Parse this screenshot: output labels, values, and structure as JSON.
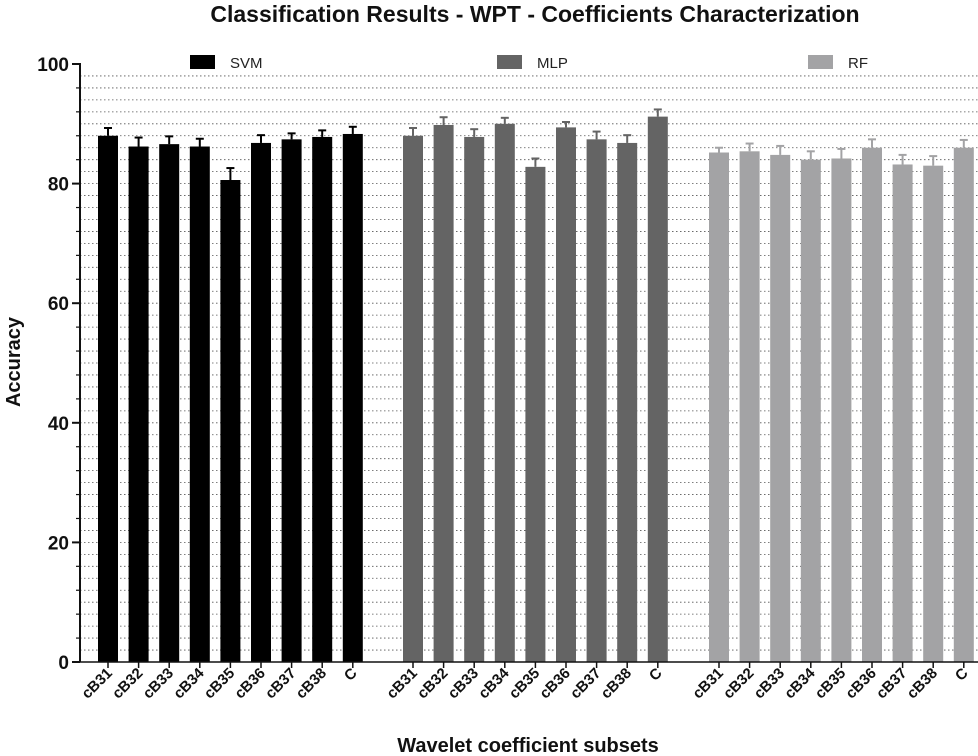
{
  "chart_data": {
    "type": "bar",
    "title": "Classification Results  - WPT - Coefficients Characterization",
    "xlabel": "Wavelet coefficient subsets",
    "ylabel": "Accuracy",
    "ylim": [
      0,
      100
    ],
    "yticks": [
      0,
      20,
      40,
      60,
      80,
      100
    ],
    "grid": "dotted horizontal gridlines",
    "legend_placement": "top",
    "categories": [
      "cB31",
      "cB32",
      "cB33",
      "cB34",
      "cB35",
      "cB36",
      "cB37",
      "cB38",
      "C"
    ],
    "series": [
      {
        "name": "SVM",
        "color": "#000000",
        "values": [
          88.0,
          86.2,
          86.6,
          86.2,
          80.6,
          86.8,
          87.4,
          87.8,
          88.3
        ],
        "errors": [
          1.3,
          1.5,
          1.3,
          1.3,
          2.0,
          1.3,
          1.0,
          1.1,
          1.2
        ]
      },
      {
        "name": "MLP",
        "color": "#646464",
        "values": [
          88.0,
          89.8,
          87.8,
          90.0,
          82.8,
          89.4,
          87.4,
          86.8,
          91.2
        ],
        "errors": [
          1.3,
          1.3,
          1.3,
          1.0,
          1.4,
          0.9,
          1.3,
          1.3,
          1.2
        ]
      },
      {
        "name": "RF",
        "color": "#a3a3a5",
        "values": [
          85.2,
          85.4,
          84.8,
          84.0,
          84.2,
          86.0,
          83.2,
          83.0,
          86.0
        ],
        "errors": [
          0.8,
          1.3,
          1.5,
          1.4,
          1.6,
          1.4,
          1.6,
          1.6,
          1.3
        ]
      }
    ]
  }
}
